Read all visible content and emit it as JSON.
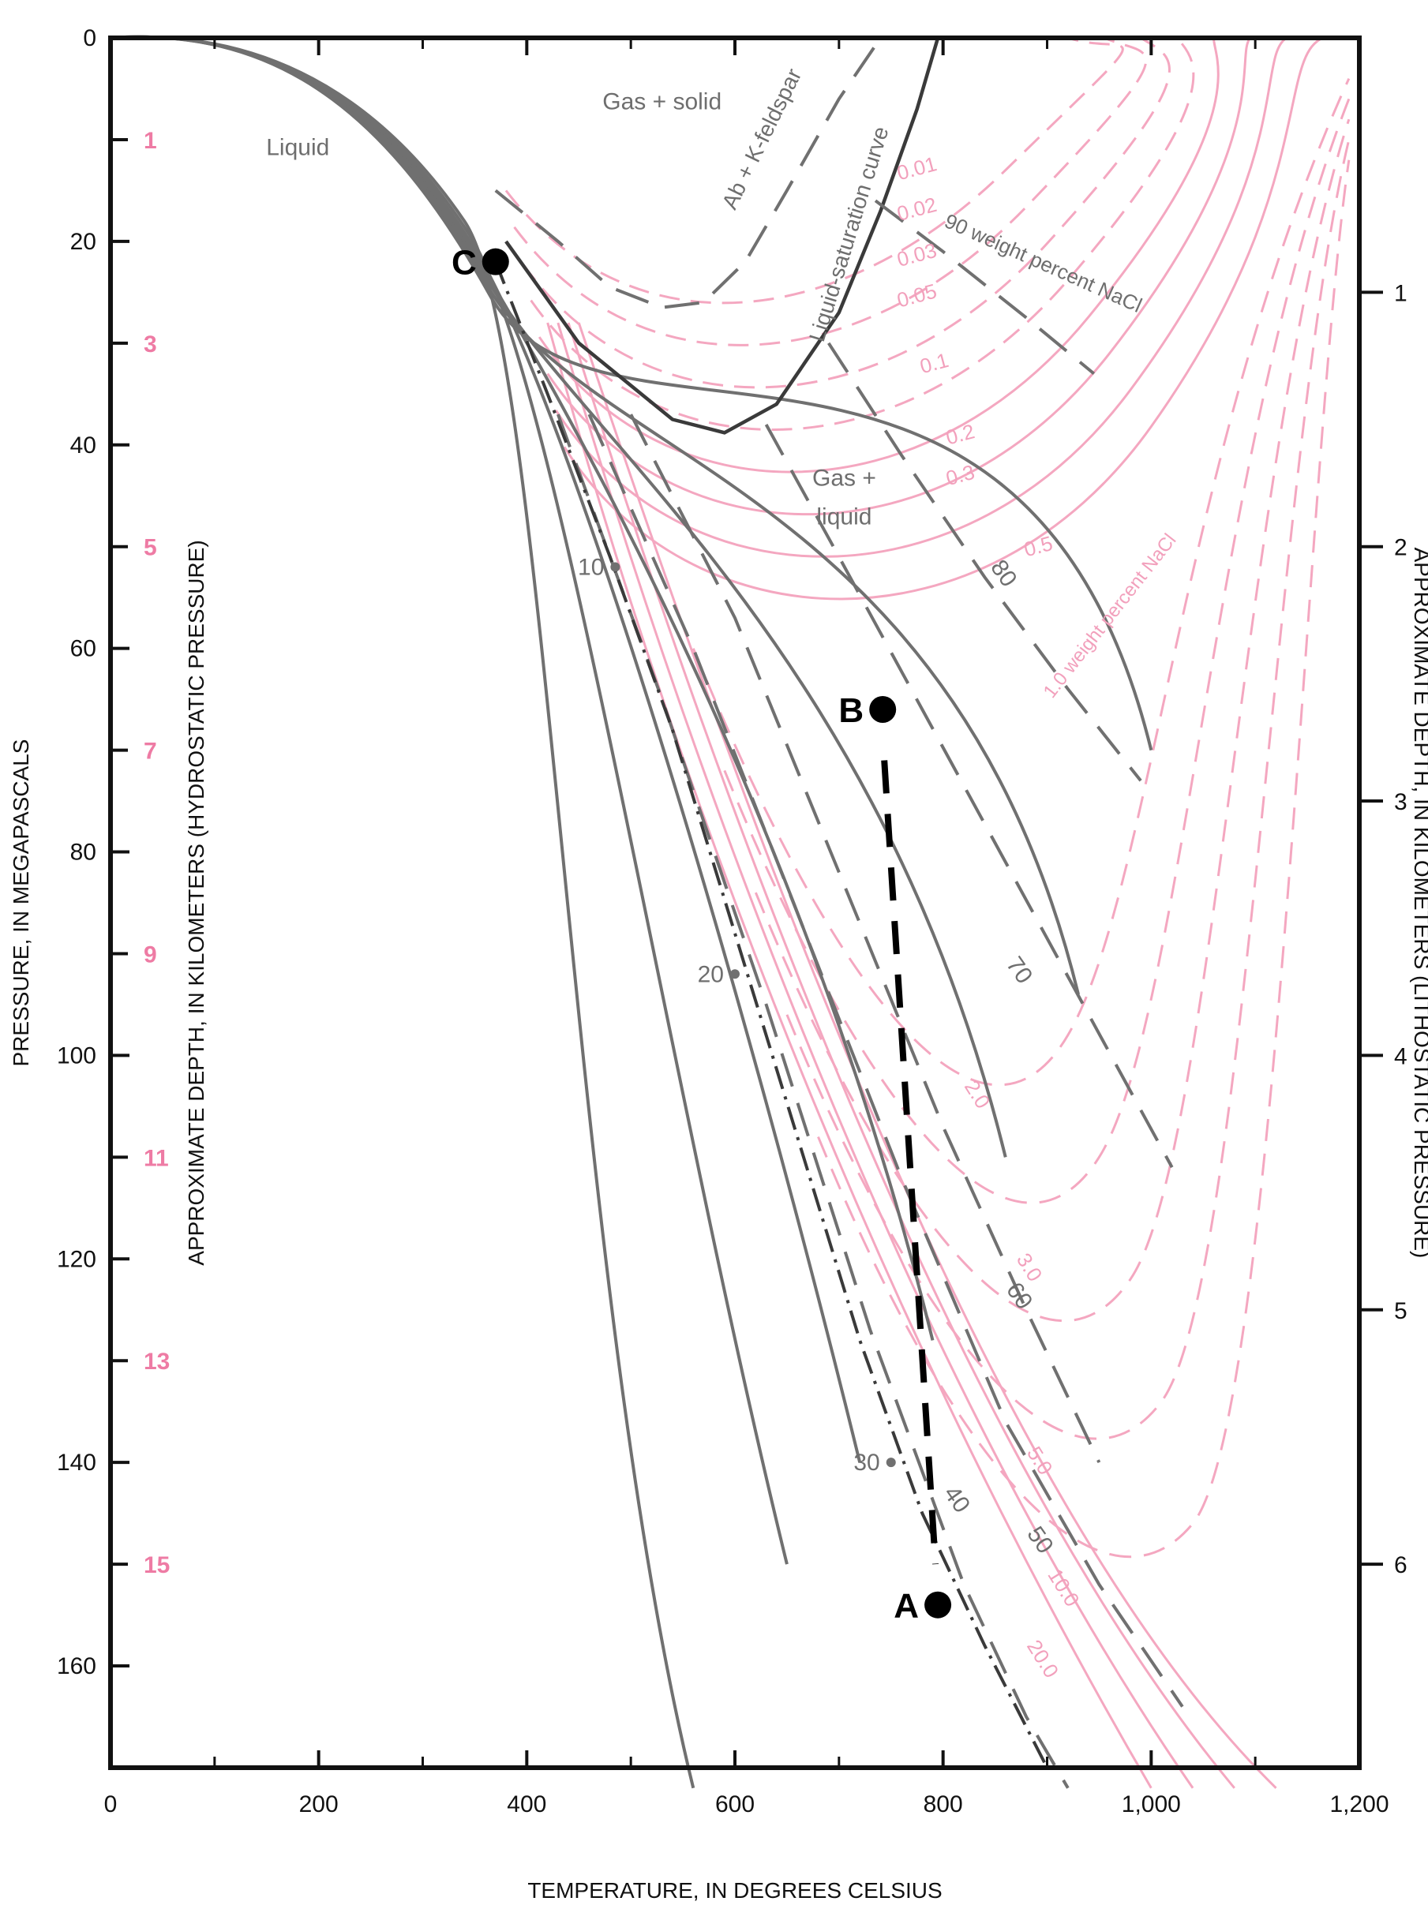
{
  "chart_data": {
    "type": "line",
    "xlabel": "TEMPERATURE, IN DEGREES CELSIUS",
    "ylabel": "PRESSURE, IN MEGAPASCALS",
    "ylabel_secondary_left": "APPROXIMATE DEPTH, IN KILOMETERS (HYDROSTATIC PRESSURE)",
    "ylabel_right": "APPROXIMATE DEPTH, IN KILOMETERS (LITHOSTATIC PRESSURE)",
    "xlim": [
      0,
      1200
    ],
    "ylim": [
      0,
      170
    ],
    "y_inverted": true,
    "grid": false,
    "x_ticks": [
      "0",
      "200",
      "400",
      "600",
      "800",
      "1,000",
      "1,200"
    ],
    "y_ticks": [
      "0",
      "20",
      "40",
      "60",
      "80",
      "100",
      "120",
      "140",
      "160"
    ],
    "hydrostatic_depth_ticks": [
      "1",
      "3",
      "5",
      "7",
      "9",
      "11",
      "13",
      "15"
    ],
    "lithostatic_depth_ticks": [
      "1",
      "2",
      "3",
      "4",
      "5",
      "6"
    ],
    "colors": {
      "grey": "#707070",
      "dark": "#3a3a3a",
      "pink": "#f4a7c0",
      "pink_label": "#ee7ba4",
      "black": "#000000"
    },
    "region_labels": [
      "Liquid",
      "Gas + solid",
      "Gas +",
      "liquid"
    ],
    "curve_labels": {
      "feldspar": "Ab + K-feldspar",
      "saturation": "Liquid-saturation curve",
      "nacl90": "90 weight percent NaCl",
      "nacl_pink": "1.0 weight percent NaCl",
      "grey_values": [
        "80",
        "70",
        "60",
        "50",
        "40"
      ],
      "depth_markers": [
        "10",
        "20",
        "30"
      ],
      "pink_values": [
        "0.01",
        "0.02",
        "0.03",
        "0.05",
        "0.1",
        "0.2",
        "0.3",
        "0.5",
        "2.0",
        "3.0",
        "5.0",
        "10.0",
        "20.0"
      ]
    },
    "points": [
      {
        "name": "A",
        "x": 795,
        "y": 154
      },
      {
        "name": "B",
        "x": 742,
        "y": 66
      },
      {
        "name": "C",
        "x": 370,
        "y": 22
      }
    ],
    "series": [
      {
        "name": "Liquid-saturation curve",
        "style": "solid",
        "color": "dark",
        "x": [
          380,
          450,
          540,
          590,
          640,
          700,
          740,
          775,
          795
        ],
        "y": [
          20,
          30,
          37.5,
          38.8,
          36,
          27,
          17,
          7,
          0
        ]
      },
      {
        "name": "Ab + K-feldspar",
        "style": "dashed",
        "color": "grey",
        "x": [
          370,
          430,
          480,
          530,
          570,
          610,
          650,
          700,
          740
        ],
        "y": [
          15,
          20,
          24.5,
          26.5,
          26,
          22,
          15,
          6,
          0
        ]
      },
      {
        "name": "90 weight percent NaCl",
        "style": "dashed",
        "color": "grey",
        "x": [
          735,
          800,
          880,
          945
        ],
        "y": [
          16,
          21,
          27.5,
          33
        ]
      },
      {
        "name": "80",
        "style": "dashed",
        "color": "grey",
        "x": [
          690,
          760,
          840,
          920,
          990
        ],
        "y": [
          30,
          41,
          53,
          64,
          73
        ]
      },
      {
        "name": "70",
        "style": "dashed",
        "color": "grey",
        "x": [
          630,
          700,
          780,
          860,
          940,
          1020
        ],
        "y": [
          38,
          51,
          66,
          81,
          96,
          111
        ]
      },
      {
        "name": "60",
        "style": "dashed",
        "color": "grey",
        "x": [
          500,
          600,
          700,
          800,
          880,
          950
        ],
        "y": [
          37,
          57,
          82,
          107,
          125,
          140
        ]
      },
      {
        "name": "50",
        "style": "dashed",
        "color": "grey",
        "x": [
          460,
          560,
          660,
          760,
          860,
          950,
          1030
        ],
        "y": [
          37,
          60,
          86,
          112,
          136,
          152,
          164
        ]
      },
      {
        "name": "40",
        "style": "dashed",
        "color": "grey",
        "x": [
          430,
          530,
          630,
          730,
          820,
          880,
          920
        ],
        "y": [
          37,
          65,
          95,
          127,
          152,
          165,
          172
        ]
      },
      {
        "name": "depth-10-20-30",
        "style": "dash-dot",
        "color": "dark",
        "x": [
          370,
          420,
          480,
          540,
          600,
          660,
          720,
          780,
          840,
          900
        ],
        "y": [
          22,
          35,
          51,
          68,
          88,
          108,
          128,
          145,
          158,
          170
        ]
      }
    ]
  }
}
